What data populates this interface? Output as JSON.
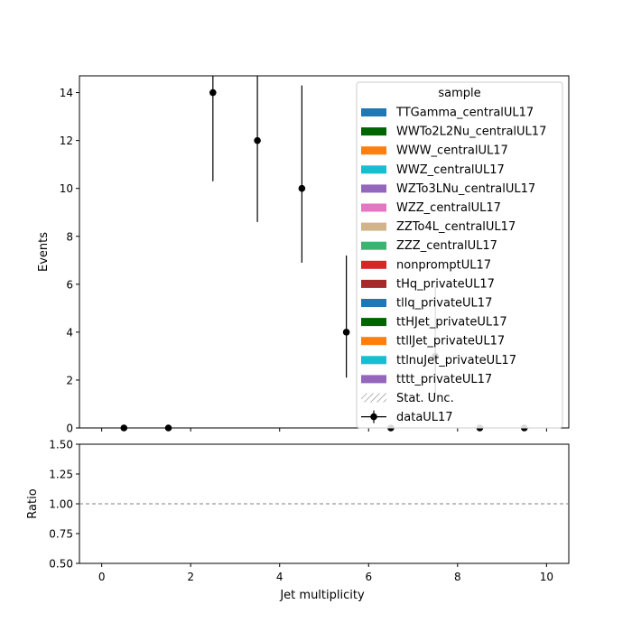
{
  "chart_data": [
    {
      "type": "scatter",
      "panel": "main",
      "title": "",
      "xlabel": "",
      "ylabel": "Events",
      "xlim": [
        -0.5,
        10.5
      ],
      "ylim": [
        0,
        14.7
      ],
      "yticks": [
        0,
        2,
        4,
        6,
        8,
        10,
        12,
        14
      ],
      "ytick_labels": [
        "0",
        "2",
        "4",
        "6",
        "8",
        "10",
        "12",
        "14"
      ],
      "xticks": [
        0,
        2,
        4,
        6,
        8,
        10
      ],
      "show_x_tick_labels": false,
      "grid": false,
      "series": [
        {
          "name": "dataUL17",
          "color": "#000000",
          "x": [
            0.5,
            1.5,
            2.5,
            3.5,
            4.5,
            5.5,
            6.5,
            7.5,
            8.5,
            9.5
          ],
          "y": [
            0,
            0,
            14,
            12,
            10,
            4,
            0,
            3,
            0,
            0
          ],
          "yerr_low": [
            0,
            0,
            3.7,
            3.4,
            3.1,
            1.9,
            0,
            1.6,
            0,
            0
          ],
          "yerr_high": [
            0,
            0,
            4.9,
            4.6,
            4.3,
            3.2,
            0,
            2.9,
            0,
            0
          ]
        }
      ],
      "legend": {
        "title": "sample",
        "placement": "top-right",
        "entries": [
          {
            "label": "TTGamma_centralUL17",
            "kind": "patch",
            "color": "#1f77b4"
          },
          {
            "label": "WWTo2L2Nu_centralUL17",
            "kind": "patch",
            "color": "#006400"
          },
          {
            "label": "WWW_centralUL17",
            "kind": "patch",
            "color": "#ff7f0e"
          },
          {
            "label": "WWZ_centralUL17",
            "kind": "patch",
            "color": "#17becf"
          },
          {
            "label": "WZTo3LNu_centralUL17",
            "kind": "patch",
            "color": "#9467bd"
          },
          {
            "label": "WZZ_centralUL17",
            "kind": "patch",
            "color": "#e377c2"
          },
          {
            "label": "ZZTo4L_centralUL17",
            "kind": "patch",
            "color": "#d2b48c"
          },
          {
            "label": "ZZZ_centralUL17",
            "kind": "patch",
            "color": "#3cb371"
          },
          {
            "label": "nonpromptUL17",
            "kind": "patch",
            "color": "#d62728"
          },
          {
            "label": "tHq_privateUL17",
            "kind": "patch",
            "color": "#a52a2a"
          },
          {
            "label": "tllq_privateUL17",
            "kind": "patch",
            "color": "#1f77b4"
          },
          {
            "label": "ttHJet_privateUL17",
            "kind": "patch",
            "color": "#006400"
          },
          {
            "label": "ttllJet_privateUL17",
            "kind": "patch",
            "color": "#ff7f0e"
          },
          {
            "label": "ttlnuJet_privateUL17",
            "kind": "patch",
            "color": "#17becf"
          },
          {
            "label": "tttt_privateUL17",
            "kind": "patch",
            "color": "#9467bd"
          },
          {
            "label": "Stat. Unc.",
            "kind": "hatch",
            "color": "#888888"
          },
          {
            "label": "dataUL17",
            "kind": "errorbar",
            "color": "#000000"
          }
        ]
      }
    },
    {
      "type": "line",
      "panel": "ratio",
      "title": "",
      "xlabel": "Jet multiplicity",
      "ylabel": "Ratio",
      "xlim": [
        -0.5,
        10.5
      ],
      "ylim": [
        0.5,
        1.5
      ],
      "yticks": [
        0.5,
        0.75,
        1.0,
        1.25,
        1.5
      ],
      "ytick_labels": [
        "0.50",
        "0.75",
        "1.00",
        "1.25",
        "1.50"
      ],
      "xticks": [
        0,
        2,
        4,
        6,
        8,
        10
      ],
      "xtick_labels": [
        "0",
        "2",
        "4",
        "6",
        "8",
        "10"
      ],
      "grid": false,
      "reference_line": {
        "y": 1.0,
        "style": "dashed",
        "color": "#808080"
      }
    }
  ]
}
